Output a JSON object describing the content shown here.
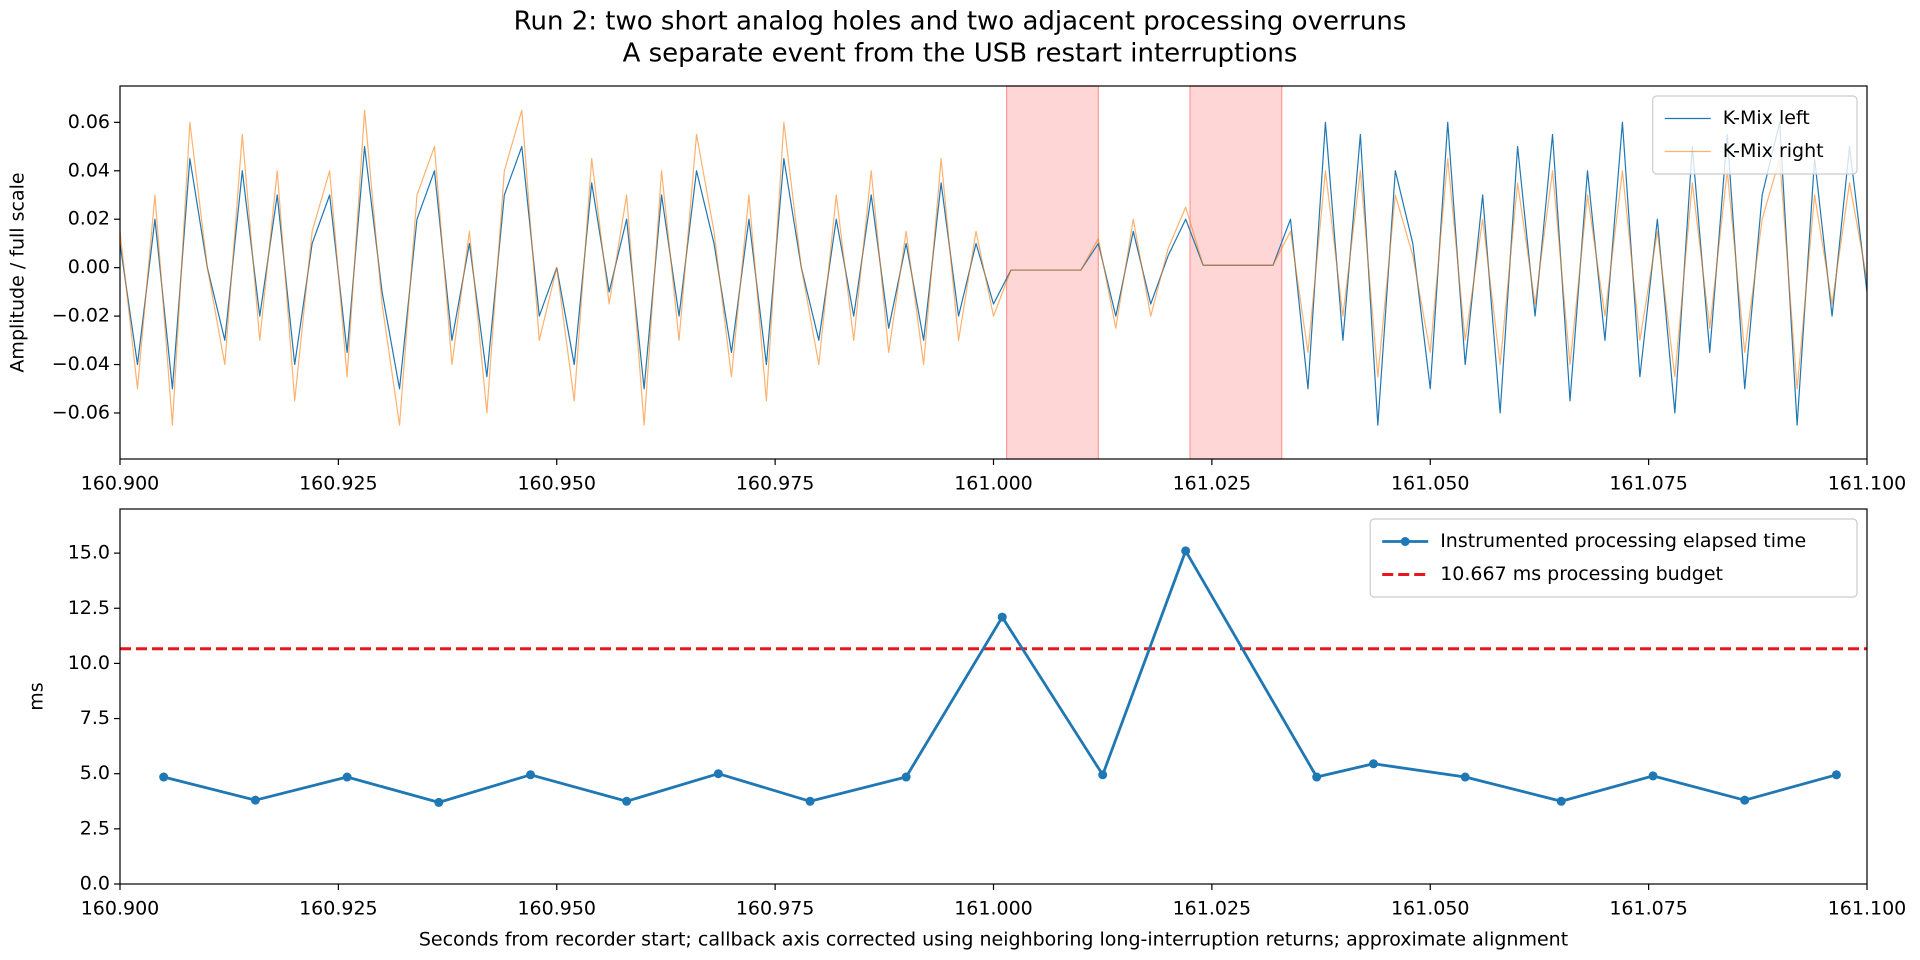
{
  "title": "Run 2: two short analog holes and two adjacent processing overruns",
  "subtitle": "A separate event from the USB restart interruptions",
  "chart_data": [
    {
      "type": "line",
      "ylabel": "Amplitude / full scale",
      "xlim": [
        160.9,
        161.1
      ],
      "xticks": [
        {
          "value": 160.9,
          "label": "160.900"
        },
        {
          "value": 160.925,
          "label": "160.925"
        },
        {
          "value": 160.95,
          "label": "160.950"
        },
        {
          "value": 160.975,
          "label": "160.975"
        },
        {
          "value": 161.0,
          "label": "161.000"
        },
        {
          "value": 161.025,
          "label": "161.025"
        },
        {
          "value": 161.05,
          "label": "161.050"
        },
        {
          "value": 161.075,
          "label": "161.075"
        },
        {
          "value": 161.1,
          "label": "161.100"
        }
      ],
      "ylim": [
        -0.079,
        0.075
      ],
      "yticks": [
        {
          "value": -0.06,
          "label": "−0.06"
        },
        {
          "value": -0.04,
          "label": "−0.04"
        },
        {
          "value": -0.02,
          "label": "−0.02"
        },
        {
          "value": 0,
          "label": "0.00"
        },
        {
          "value": 0.02,
          "label": "0.02"
        },
        {
          "value": 0.04,
          "label": "0.04"
        },
        {
          "value": 0.06,
          "label": "0.06"
        }
      ],
      "legend": "upper right",
      "spans": [
        [
          161.0015,
          161.012
        ],
        [
          161.0225,
          161.033
        ]
      ],
      "span_color": "#ff9999",
      "x": [
        160.9,
        160.902,
        160.904,
        160.906,
        160.908,
        160.91,
        160.912,
        160.914,
        160.916,
        160.918,
        160.92,
        160.922,
        160.924,
        160.926,
        160.928,
        160.93,
        160.932,
        160.934,
        160.936,
        160.938,
        160.94,
        160.942,
        160.944,
        160.946,
        160.948,
        160.95,
        160.952,
        160.954,
        160.956,
        160.958,
        160.96,
        160.962,
        160.964,
        160.966,
        160.968,
        160.97,
        160.972,
        160.974,
        160.976,
        160.978,
        160.98,
        160.982,
        160.984,
        160.986,
        160.988,
        160.99,
        160.992,
        160.994,
        160.996,
        160.998,
        161.0,
        161.002,
        161.004,
        161.006,
        161.008,
        161.01,
        161.012,
        161.014,
        161.016,
        161.018,
        161.02,
        161.022,
        161.024,
        161.026,
        161.028,
        161.03,
        161.032,
        161.034,
        161.036,
        161.038,
        161.04,
        161.042,
        161.044,
        161.046,
        161.048,
        161.05,
        161.052,
        161.054,
        161.056,
        161.058,
        161.06,
        161.062,
        161.064,
        161.066,
        161.068,
        161.07,
        161.072,
        161.074,
        161.076,
        161.078,
        161.08,
        161.082,
        161.084,
        161.086,
        161.088,
        161.09,
        161.092,
        161.094,
        161.096,
        161.098,
        161.1
      ],
      "series": [
        {
          "name": "K-Mix left",
          "color": "#1f77b4",
          "width": 1.2,
          "opacity": 1,
          "values": [
            0.01,
            -0.04,
            0.02,
            -0.05,
            0.045,
            0.0,
            -0.03,
            0.04,
            -0.02,
            0.03,
            -0.04,
            0.01,
            0.03,
            -0.035,
            0.05,
            -0.01,
            -0.05,
            0.02,
            0.04,
            -0.03,
            0.01,
            -0.045,
            0.03,
            0.05,
            -0.02,
            0.0,
            -0.04,
            0.035,
            -0.01,
            0.02,
            -0.05,
            0.03,
            -0.02,
            0.04,
            0.01,
            -0.035,
            0.02,
            -0.04,
            0.045,
            0.0,
            -0.03,
            0.02,
            -0.02,
            0.03,
            -0.025,
            0.01,
            -0.03,
            0.035,
            -0.02,
            0.01,
            -0.015,
            -0.001,
            -0.001,
            -0.001,
            -0.001,
            -0.001,
            0.01,
            -0.02,
            0.015,
            -0.015,
            0.005,
            0.02,
            0.001,
            0.001,
            0.001,
            0.001,
            0.001,
            0.02,
            -0.05,
            0.06,
            -0.03,
            0.055,
            -0.065,
            0.04,
            0.01,
            -0.05,
            0.06,
            -0.04,
            0.03,
            -0.06,
            0.05,
            -0.02,
            0.055,
            -0.055,
            0.04,
            -0.03,
            0.06,
            -0.045,
            0.02,
            -0.06,
            0.05,
            -0.035,
            0.055,
            -0.05,
            0.03,
            0.06,
            -0.065,
            0.045,
            -0.02,
            0.05,
            -0.01
          ]
        },
        {
          "name": "K-Mix right",
          "color": "#ff7f0e",
          "width": 1.2,
          "opacity": 0.6,
          "values": [
            0.015,
            -0.05,
            0.03,
            -0.065,
            0.06,
            0.0,
            -0.04,
            0.055,
            -0.03,
            0.04,
            -0.055,
            0.015,
            0.04,
            -0.045,
            0.065,
            -0.015,
            -0.065,
            0.03,
            0.05,
            -0.04,
            0.015,
            -0.06,
            0.04,
            0.065,
            -0.03,
            0.0,
            -0.055,
            0.045,
            -0.015,
            0.03,
            -0.065,
            0.04,
            -0.03,
            0.055,
            0.015,
            -0.045,
            0.03,
            -0.055,
            0.06,
            0.0,
            -0.04,
            0.03,
            -0.03,
            0.04,
            -0.035,
            0.015,
            -0.04,
            0.045,
            -0.03,
            0.015,
            -0.02,
            -0.001,
            -0.001,
            -0.001,
            -0.001,
            -0.001,
            0.012,
            -0.025,
            0.02,
            -0.02,
            0.008,
            0.025,
            0.001,
            0.001,
            0.001,
            0.001,
            0.001,
            0.015,
            -0.035,
            0.04,
            -0.02,
            0.04,
            -0.045,
            0.03,
            0.005,
            -0.035,
            0.045,
            -0.03,
            0.02,
            -0.04,
            0.035,
            -0.015,
            0.04,
            -0.04,
            0.03,
            -0.02,
            0.04,
            -0.03,
            0.015,
            -0.045,
            0.035,
            -0.025,
            0.04,
            -0.035,
            0.02,
            0.045,
            -0.05,
            0.03,
            -0.015,
            0.035,
            -0.005
          ]
        }
      ]
    },
    {
      "type": "line",
      "ylabel": "ms",
      "xlabel": "Seconds from recorder start; callback axis corrected using neighboring long-interruption returns; approximate alignment",
      "xlim": [
        160.9,
        161.1
      ],
      "xticks": [
        {
          "value": 160.9,
          "label": "160.900"
        },
        {
          "value": 160.925,
          "label": "160.925"
        },
        {
          "value": 160.95,
          "label": "160.950"
        },
        {
          "value": 160.975,
          "label": "160.975"
        },
        {
          "value": 161.0,
          "label": "161.000"
        },
        {
          "value": 161.025,
          "label": "161.025"
        },
        {
          "value": 161.05,
          "label": "161.050"
        },
        {
          "value": 161.075,
          "label": "161.075"
        },
        {
          "value": 161.1,
          "label": "161.100"
        }
      ],
      "ylim": [
        0,
        17
      ],
      "yticks": [
        {
          "value": 0,
          "label": "0.0"
        },
        2.5,
        {
          "value": 5,
          "label": "5.0"
        },
        7.5,
        {
          "value": 10,
          "label": "10.0"
        },
        12.5,
        {
          "value": 15,
          "label": "15.0"
        }
      ],
      "legend": "upper right",
      "x": [
        160.905,
        160.9155,
        160.926,
        160.9365,
        160.947,
        160.958,
        160.9685,
        160.979,
        160.99,
        161.001,
        161.0125,
        161.022,
        161.037,
        161.0435,
        161.054,
        161.065,
        161.0755,
        161.086,
        161.0965
      ],
      "series": [
        {
          "name": "Instrumented processing elapsed time",
          "color": "#1f77b4",
          "width": 2.8,
          "opacity": 1,
          "marker": true,
          "values": [
            4.85,
            3.8,
            4.85,
            3.7,
            4.95,
            3.75,
            5.0,
            3.75,
            4.85,
            12.1,
            4.95,
            15.1,
            4.85,
            5.45,
            4.85,
            3.75,
            4.9,
            3.8,
            4.95
          ]
        }
      ],
      "hlines": [
        {
          "name": "10.667 ms processing budget",
          "value": 10.667,
          "color": "#e8161b",
          "dashed": true
        }
      ]
    }
  ]
}
